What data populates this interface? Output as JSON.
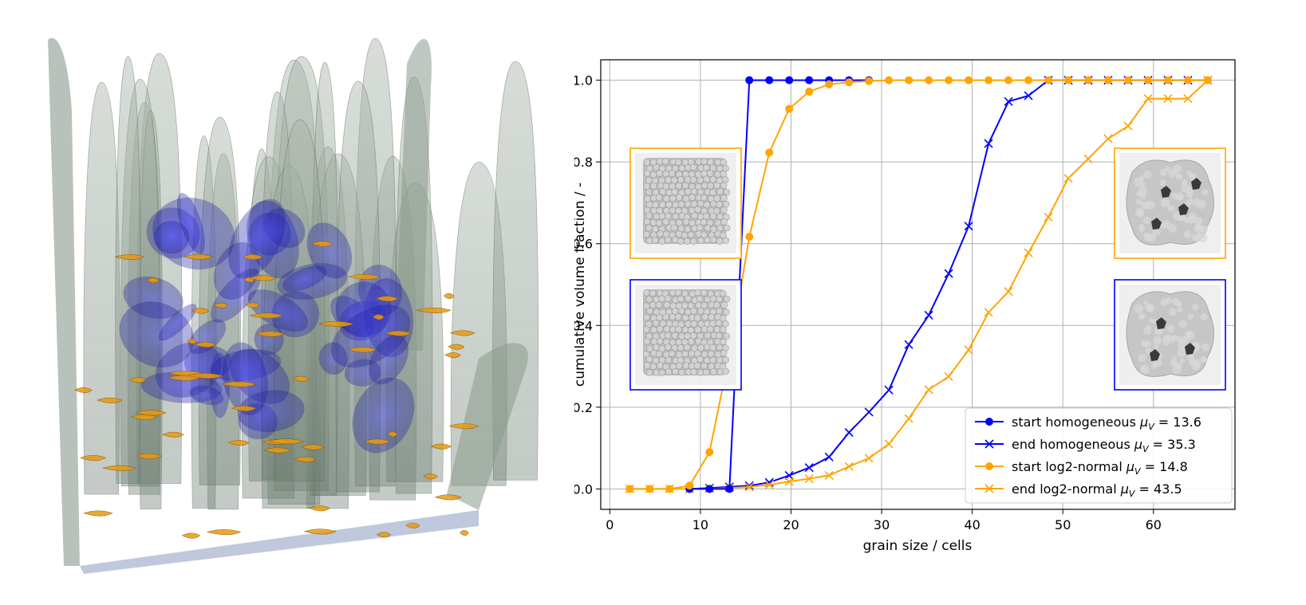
{
  "chart_data": {
    "type": "line",
    "xlabel": "grain size / cells",
    "ylabel": "cumulative volume fraction / -",
    "xlim": [
      -1,
      69
    ],
    "ylim": [
      -0.05,
      1.05
    ],
    "xticks": [
      0,
      10,
      20,
      30,
      40,
      50,
      60
    ],
    "yticks": [
      0.0,
      0.2,
      0.4,
      0.6,
      0.8,
      1.0
    ],
    "grid": true,
    "legend_position": "lower-right",
    "series": [
      {
        "name": "start homogeneous",
        "mu": "13.6",
        "color": "#0000ff",
        "marker": "circle",
        "x": [
          8.8,
          11.0,
          13.2,
          15.4,
          17.6,
          19.8,
          22.0,
          24.2,
          26.4,
          28.6
        ],
        "y": [
          0.0,
          0.0,
          0.0,
          1.0,
          1.0,
          1.0,
          1.0,
          1.0,
          1.0,
          1.0
        ]
      },
      {
        "name": "end homogeneous",
        "mu": "35.3",
        "color": "#0000ff",
        "marker": "x",
        "x": [
          8.8,
          11.0,
          13.2,
          15.4,
          17.6,
          19.8,
          22.0,
          24.2,
          26.4,
          28.6,
          30.8,
          33.0,
          35.2,
          37.4,
          39.6,
          41.8,
          44.0,
          46.2,
          48.4,
          50.6,
          52.8,
          55.0,
          57.2,
          59.4,
          61.6,
          63.8,
          66.0
        ],
        "y": [
          0.0,
          0.002,
          0.005,
          0.008,
          0.016,
          0.033,
          0.052,
          0.078,
          0.138,
          0.188,
          0.242,
          0.353,
          0.425,
          0.527,
          0.643,
          0.845,
          0.948,
          0.962,
          1.0,
          1.0,
          1.0,
          1.0,
          1.0,
          1.0,
          1.0,
          1.0,
          1.0
        ]
      },
      {
        "name": "start log2-normal",
        "mu": "14.8",
        "color": "#ffa500",
        "marker": "circle",
        "x": [
          2.2,
          4.4,
          6.6,
          8.8,
          11.0,
          13.2,
          15.4,
          17.6,
          19.8,
          22.0,
          24.2,
          26.4,
          28.6,
          30.8,
          33.0,
          35.2,
          37.4,
          39.6,
          41.8,
          44.0,
          46.2,
          48.4,
          50.6,
          52.8,
          55.0,
          57.2,
          59.4,
          61.6,
          63.8,
          66.0
        ],
        "y": [
          0.0,
          0.0,
          0.0,
          0.008,
          0.09,
          0.328,
          0.617,
          0.823,
          0.93,
          0.972,
          0.99,
          0.995,
          0.998,
          1.0,
          1.0,
          1.0,
          1.0,
          1.0,
          1.0,
          1.0,
          1.0,
          1.0,
          1.0,
          1.0,
          1.0,
          1.0,
          1.0,
          1.0,
          1.0,
          1.0
        ]
      },
      {
        "name": "end log2-normal",
        "mu": "43.5",
        "color": "#ffa500",
        "marker": "x",
        "x": [
          2.2,
          4.4,
          6.6,
          8.8,
          11.0,
          13.2,
          15.4,
          17.6,
          19.8,
          22.0,
          24.2,
          26.4,
          28.6,
          30.8,
          33.0,
          35.2,
          37.4,
          39.6,
          41.8,
          44.0,
          46.2,
          48.4,
          50.6,
          52.8,
          55.0,
          57.2,
          59.4,
          61.6,
          63.8,
          66.0
        ],
        "y": [
          0.0,
          0.0,
          0.0,
          0.0,
          0.0,
          0.002,
          0.005,
          0.01,
          0.018,
          0.025,
          0.033,
          0.055,
          0.075,
          0.11,
          0.172,
          0.243,
          0.275,
          0.34,
          0.432,
          0.483,
          0.578,
          0.665,
          0.76,
          0.808,
          0.857,
          0.888,
          0.955,
          0.955,
          0.955,
          1.0
        ]
      }
    ]
  },
  "legend": {
    "items": [
      {
        "label": "start homogeneous",
        "mu": "13.6",
        "color": "#0000ff",
        "marker": "circle"
      },
      {
        "label": "end homogeneous",
        "mu": "35.3",
        "color": "#0000ff",
        "marker": "x"
      },
      {
        "label": "start log2-normal",
        "mu": "14.8",
        "color": "#ffa500",
        "marker": "circle"
      },
      {
        "label": "end log2-normal",
        "mu": "43.5",
        "color": "#ffa500",
        "marker": "x"
      }
    ],
    "mu_symbol": "μ",
    "mu_subscript": "V"
  },
  "insets": [
    {
      "name": "inset-start-log2-normal",
      "border_color": "#ffa500",
      "content": "dense-grains"
    },
    {
      "name": "inset-start-homogeneous",
      "border_color": "#0000ff",
      "content": "dense-grains"
    },
    {
      "name": "inset-end-log2-normal",
      "border_color": "#ffa500",
      "content": "coarse-grains"
    },
    {
      "name": "inset-end-homogeneous",
      "border_color": "#0000ff",
      "content": "coarse-grains"
    }
  ],
  "render3d": {
    "colors": {
      "grains": "#8a9a8c",
      "blue_grains": "#2c2cc8",
      "orange_grains": "#e89a10",
      "base": "#b8c2d8"
    }
  }
}
